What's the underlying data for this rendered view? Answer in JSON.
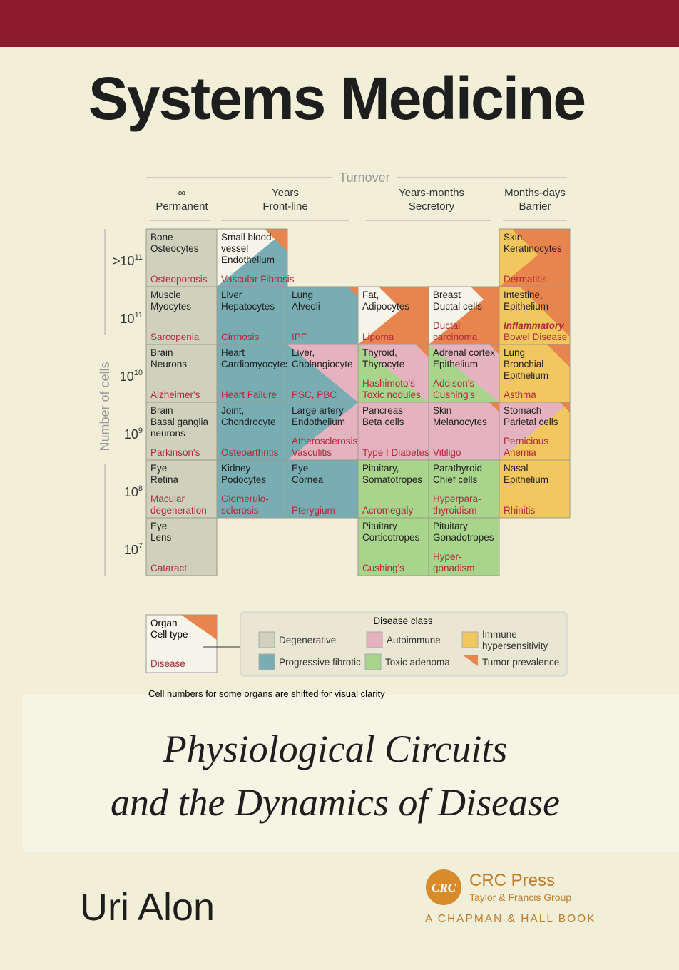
{
  "cover": {
    "title": "Systems Medicine",
    "subtitle": [
      "Physiological Circuits",
      "and the Dynamics of Disease"
    ],
    "author": "Uri Alon",
    "publisher": {
      "logo": "CRC",
      "name": "CRC Press",
      "group": "Taylor & Francis Group",
      "imprint": "A CHAPMAN & HALL BOOK"
    }
  },
  "diagram": {
    "turnover_label": "Turnover",
    "y_label": "Number of cells",
    "columns": [
      [
        "∞",
        "Permanent"
      ],
      [
        "Years",
        "Front-line"
      ],
      [
        "Years-months",
        "Secretory"
      ],
      [
        "Months-days",
        "Barrier"
      ]
    ],
    "rows": [
      {
        "label": {
          "base": ">10",
          "exp": "11"
        },
        "cells": [
          {
            "organ": [
              "Bone",
              "Osteocytes"
            ],
            "disease": [
              "Osteoporosis"
            ]
          },
          {
            "organ": [
              "Small blood",
              "vessel",
              "Endothelium"
            ],
            "disease": [
              "Vascular Fibrosis"
            ]
          },
          null,
          null,
          null,
          {
            "organ": [
              "Skin,",
              "Keratinocytes"
            ],
            "disease": [
              "Dermatitis"
            ]
          }
        ]
      },
      {
        "label": {
          "base": "10",
          "exp": "11"
        },
        "cells": [
          {
            "organ": [
              "Muscle",
              "Myocytes"
            ],
            "disease": [
              "Sarcopenia"
            ]
          },
          {
            "organ": [
              "Liver",
              "Hepatocytes"
            ],
            "disease": [
              "Cirrhosis"
            ]
          },
          {
            "organ": [
              "Lung",
              "Alveoli"
            ],
            "disease": [
              "IPF"
            ]
          },
          {
            "organ": [
              "Fat,",
              "Adipocytes"
            ],
            "disease": [
              "Lipoma"
            ]
          },
          {
            "organ": [
              "Breast",
              "Ductal cells"
            ],
            "disease": [
              "Ductal",
              "carcinoma"
            ]
          },
          {
            "organ": [
              "Intestine,",
              "Epithelium"
            ],
            "disease": [
              "Inflammatory",
              "Bowel Disease"
            ]
          }
        ]
      },
      {
        "label": {
          "base": "10",
          "exp": "10"
        },
        "cells": [
          {
            "organ": [
              "Brain",
              "Neurons"
            ],
            "disease": [
              "Alzheimer's"
            ]
          },
          {
            "organ": [
              "Heart",
              "Cardiomyocytes"
            ],
            "disease": [
              "Heart Failure"
            ]
          },
          {
            "organ": [
              "Liver,",
              "Cholangiocyte"
            ],
            "disease": [
              "PSC, PBC"
            ]
          },
          {
            "organ": [
              "Thyroid,",
              "Thyrocyte"
            ],
            "disease": [
              "Hashimoto's",
              "Toxic nodules"
            ]
          },
          {
            "organ": [
              "Adrenal cortex",
              "Epithelium"
            ],
            "disease": [
              "Addison's",
              "Cushing's"
            ]
          },
          {
            "organ": [
              "Lung",
              "Bronchial",
              "Epithelium"
            ],
            "disease": [
              "Asthma"
            ]
          }
        ]
      },
      {
        "label": {
          "base": "10",
          "exp": "9"
        },
        "cells": [
          {
            "organ": [
              "Brain",
              "Basal ganglia",
              "neurons"
            ],
            "disease": [
              "Parkinson's"
            ]
          },
          {
            "organ": [
              "Joint,",
              "Chondrocyte"
            ],
            "disease": [
              "Osteoarthritis"
            ]
          },
          {
            "organ": [
              "Large artery",
              "Endothelium"
            ],
            "disease": [
              "Atherosclerosis",
              "Vasculitis"
            ]
          },
          {
            "organ": [
              "Pancreas",
              "Beta cells"
            ],
            "disease": [
              "Type I Diabetes"
            ]
          },
          {
            "organ": [
              "Skin",
              "Melanocytes"
            ],
            "disease": [
              "Vitiligo"
            ]
          },
          {
            "organ": [
              "Stomach",
              "Parietal cells"
            ],
            "disease": [
              "Pernicious",
              "Anemia"
            ]
          }
        ]
      },
      {
        "label": {
          "base": "10",
          "exp": "8"
        },
        "cells": [
          {
            "organ": [
              "Eye",
              "Retina"
            ],
            "disease": [
              "Macular",
              "degeneration"
            ]
          },
          {
            "organ": [
              "Kidney",
              "Podocytes"
            ],
            "disease": [
              "Glomerulo-",
              "sclerosis"
            ]
          },
          {
            "organ": [
              "Eye",
              "Cornea"
            ],
            "disease": [
              "Pterygium"
            ]
          },
          {
            "organ": [
              "Pituitary,",
              "Somatotropes"
            ],
            "disease": [
              "Acromegaly"
            ]
          },
          {
            "organ": [
              "Parathyroid",
              "Chief cells"
            ],
            "disease": [
              "Hyperpara-",
              "thyroidism"
            ]
          },
          {
            "organ": [
              "Nasal",
              "Epithelium"
            ],
            "disease": [
              "Rhinitis"
            ]
          }
        ]
      },
      {
        "label": {
          "base": "10",
          "exp": "7"
        },
        "cells": [
          {
            "organ": [
              "Eye",
              "Lens"
            ],
            "disease": [
              "Cataract"
            ]
          },
          null,
          null,
          {
            "organ": [
              "Pituitary",
              "Corticotropes"
            ],
            "disease": [
              "Cushing's"
            ]
          },
          {
            "organ": [
              "Pituitary",
              "Gonadotropes"
            ],
            "disease": [
              "Hyper-",
              "gonadism"
            ]
          },
          null
        ]
      }
    ],
    "key": {
      "organ": "Organ",
      "cell_type": "Cell type",
      "disease": "Disease"
    },
    "legend": {
      "title": "Disease class",
      "classes": [
        "Degenerative",
        "Autoimmune",
        "Immune hypersensitivity",
        "Progressive fibrotic",
        "Toxic adenoma",
        "Tumor prevalence"
      ]
    },
    "note": "Cell numbers for some organs are shifted for visual clarity"
  }
}
